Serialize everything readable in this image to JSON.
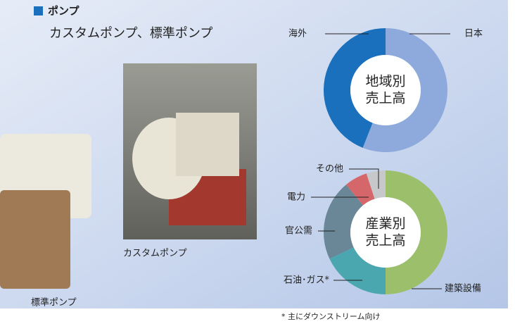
{
  "header": {
    "title": "ポンプ",
    "subtitle": "カスタムポンプ、標準ポンプ"
  },
  "photos": {
    "custom_caption": "カスタムポンプ",
    "standard_caption": "標準ポンプ"
  },
  "chart_data": [
    {
      "type": "donut",
      "center_label": [
        "地域別",
        "売上高"
      ],
      "categories": [
        "日本",
        "海外"
      ],
      "values": [
        56,
        44
      ],
      "colors": [
        "#8eaadc",
        "#1a70bd"
      ]
    },
    {
      "type": "donut",
      "center_label": [
        "産業別",
        "売上高"
      ],
      "categories": [
        "建築設備",
        "石油･ガス*",
        "官公需",
        "電力",
        "その他"
      ],
      "values": [
        50,
        18,
        21,
        6,
        5
      ],
      "colors": [
        "#9cbf6c",
        "#4aa7b0",
        "#6a8797",
        "#d5676b",
        "#c6c8ca"
      ],
      "footnote": "* 主にダウンストリーム向け"
    }
  ]
}
